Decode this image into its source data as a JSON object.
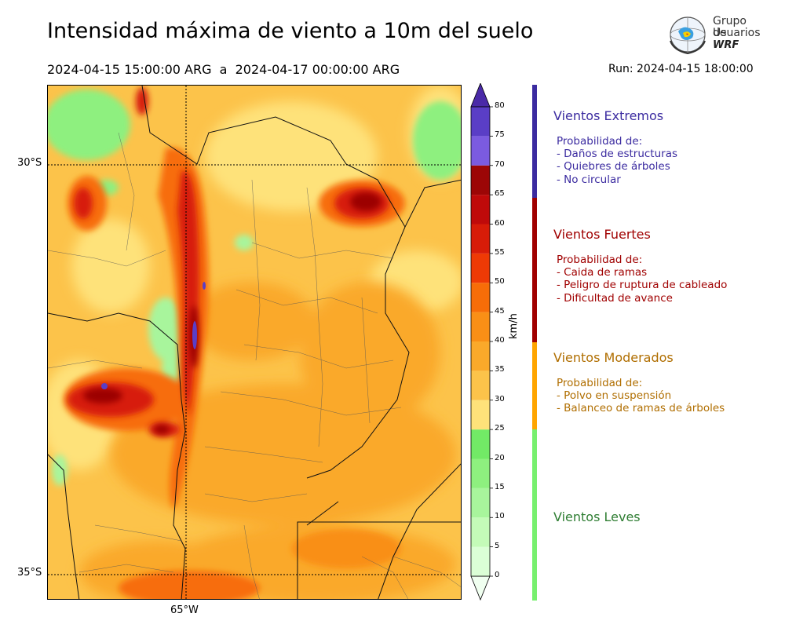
{
  "header": {
    "title": "Intensidad máxima de viento a 10m del suelo",
    "period": "2024-04-15 15:00:00 ARG  a  2024-04-17 00:00:00 ARG",
    "run": "Run: 2024-04-15 18:00:00"
  },
  "logo": {
    "line1": "Grupo de",
    "line2": "Usuarios",
    "line3": "WRF"
  },
  "map": {
    "lat_labels": [
      "30°S",
      "35°S"
    ],
    "lon_labels": [
      "65°W"
    ]
  },
  "colorbar": {
    "unit": "km/h",
    "ticks": [
      "0",
      "5",
      "10",
      "15",
      "20",
      "25",
      "30",
      "35",
      "40",
      "45",
      "50",
      "55",
      "60",
      "65",
      "70",
      "75",
      "80"
    ],
    "colors": [
      "#f0fff0",
      "#dbffd6",
      "#c4fbb8",
      "#a8f59c",
      "#8ef07f",
      "#72ea66",
      "#fee27a",
      "#fcc34a",
      "#faa92a",
      "#f98f16",
      "#f76d08",
      "#ee3a05",
      "#d71c08",
      "#bf0a0a",
      "#9c0606",
      "#7b5be0",
      "#5a3ec6",
      "#4a2aa8"
    ]
  },
  "categories": [
    {
      "title": "Vientos Extremos",
      "color": "#3b2ba0",
      "lines": [
        "Probabilidad de:",
        "- Daños de estructuras",
        "- Quiebres de árboles",
        "- No circular"
      ]
    },
    {
      "title": "Vientos Fuertes",
      "color": "#a00000",
      "lines": [
        "Probabilidad de:",
        "- Caida de ramas",
        "- Peligro de ruptura de cableado",
        "- Dificultad de avance"
      ]
    },
    {
      "title": "Vientos Moderados",
      "color": "#b06e00",
      "lines": [
        "Probabilidad de:",
        "- Polvo en suspensión",
        "- Balanceo de ramas de árboles"
      ]
    },
    {
      "title": "Vientos Leves",
      "color": "#2e7d32",
      "lines": []
    }
  ],
  "category_bar_colors": [
    "#3b2ba0",
    "#a00000",
    "#ffa500",
    "#77f06e"
  ]
}
